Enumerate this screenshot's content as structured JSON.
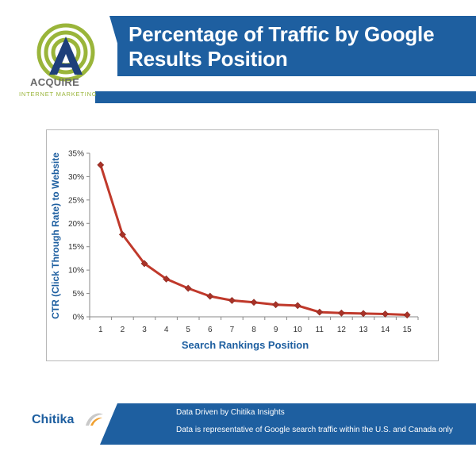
{
  "header": {
    "title": "Percentage of Traffic by Google Results Position"
  },
  "logo": {
    "name": "ACQUIRE",
    "tagline": "INTERNET MARKETING",
    "colors": {
      "green": "#9ab53a",
      "navy": "#1e3f7a"
    }
  },
  "chart_data": {
    "type": "line",
    "x": [
      1,
      2,
      3,
      4,
      5,
      6,
      7,
      8,
      9,
      10,
      11,
      12,
      13,
      14,
      15
    ],
    "series": [
      {
        "values": [
          32.5,
          17.6,
          11.4,
          8.1,
          6.1,
          4.4,
          3.5,
          3.1,
          2.6,
          2.4,
          1.0,
          0.8,
          0.7,
          0.6,
          0.4
        ],
        "color": "#c0392b"
      }
    ],
    "xlabel": "Search Rankings Position",
    "ylabel": "CTR (Click Through Rate) to Website",
    "ylim": [
      0,
      35
    ],
    "yticks": [
      "0%",
      "5%",
      "10%",
      "15%",
      "20%",
      "25%",
      "30%",
      "35%"
    ],
    "xticks": [
      "1",
      "2",
      "3",
      "4",
      "5",
      "6",
      "7",
      "8",
      "9",
      "10",
      "11",
      "12",
      "13",
      "14",
      "15"
    ],
    "grid": false,
    "legend": "none",
    "marker": "diamond"
  },
  "footer": {
    "brand": "Chitika",
    "line1": "Data Driven by Chitika Insights",
    "line2": "Data is representative of Google search traffic within the U.S. and Canada only"
  },
  "theme": {
    "accent": "#1e5fa0",
    "label_color": "#1e5fa0"
  }
}
